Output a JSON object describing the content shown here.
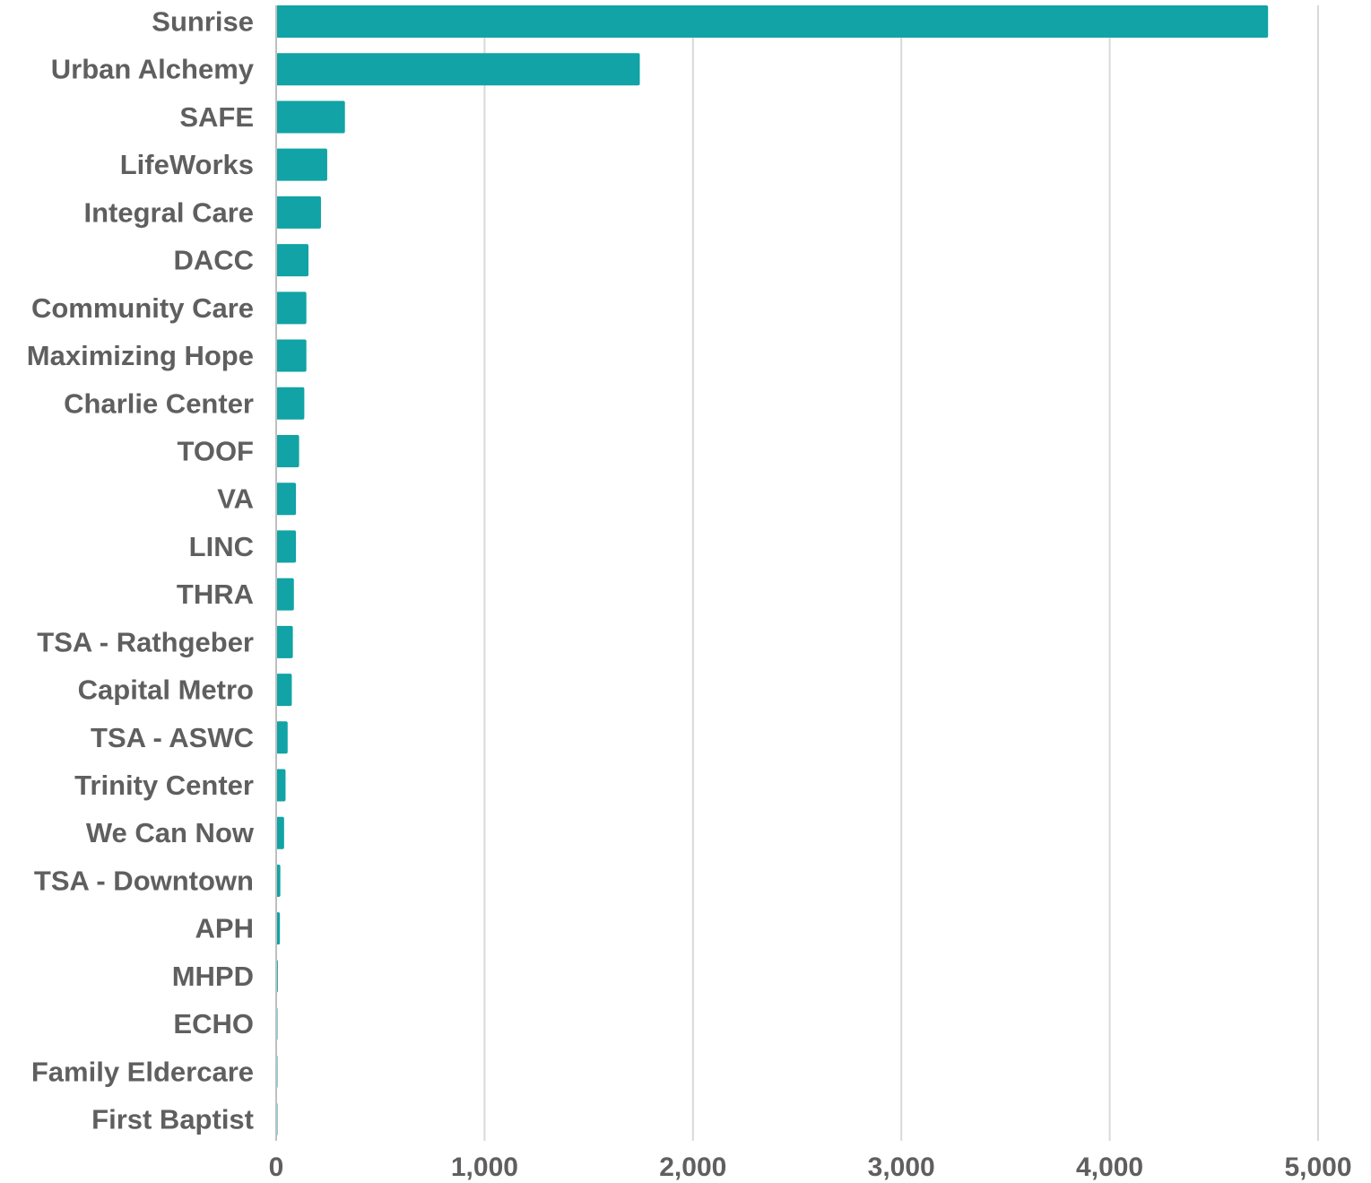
{
  "chart_data": {
    "type": "bar",
    "orientation": "horizontal",
    "categories": [
      "Sunrise",
      "Urban Alchemy",
      "SAFE",
      "LifeWorks",
      "Integral Care",
      "DACC",
      "Community Care",
      "Maximizing Hope",
      "Charlie Center",
      "TOOF",
      "VA",
      "LINC",
      "THRA",
      "TSA - Rathgeber",
      "Capital Metro",
      "TSA - ASWC",
      "Trinity Center",
      "We Can Now",
      "TSA - Downtown",
      "APH",
      "MHPD",
      "ECHO",
      "Family Eldercare",
      "First Baptist"
    ],
    "values": [
      4760,
      1745,
      330,
      245,
      215,
      155,
      145,
      145,
      135,
      110,
      95,
      95,
      85,
      80,
      75,
      55,
      45,
      38,
      20,
      18,
      8,
      5,
      4,
      3
    ],
    "title": "",
    "xlabel": "",
    "ylabel": "",
    "xlim": [
      0,
      5000
    ],
    "xticks": [
      0,
      1000,
      2000,
      3000,
      4000,
      5000
    ],
    "xtick_labels": [
      "0",
      "1,000",
      "2,000",
      "3,000",
      "4,000",
      "5,000"
    ],
    "grid": "vertical",
    "legend": "none",
    "bar_color": "#11a3a5"
  }
}
